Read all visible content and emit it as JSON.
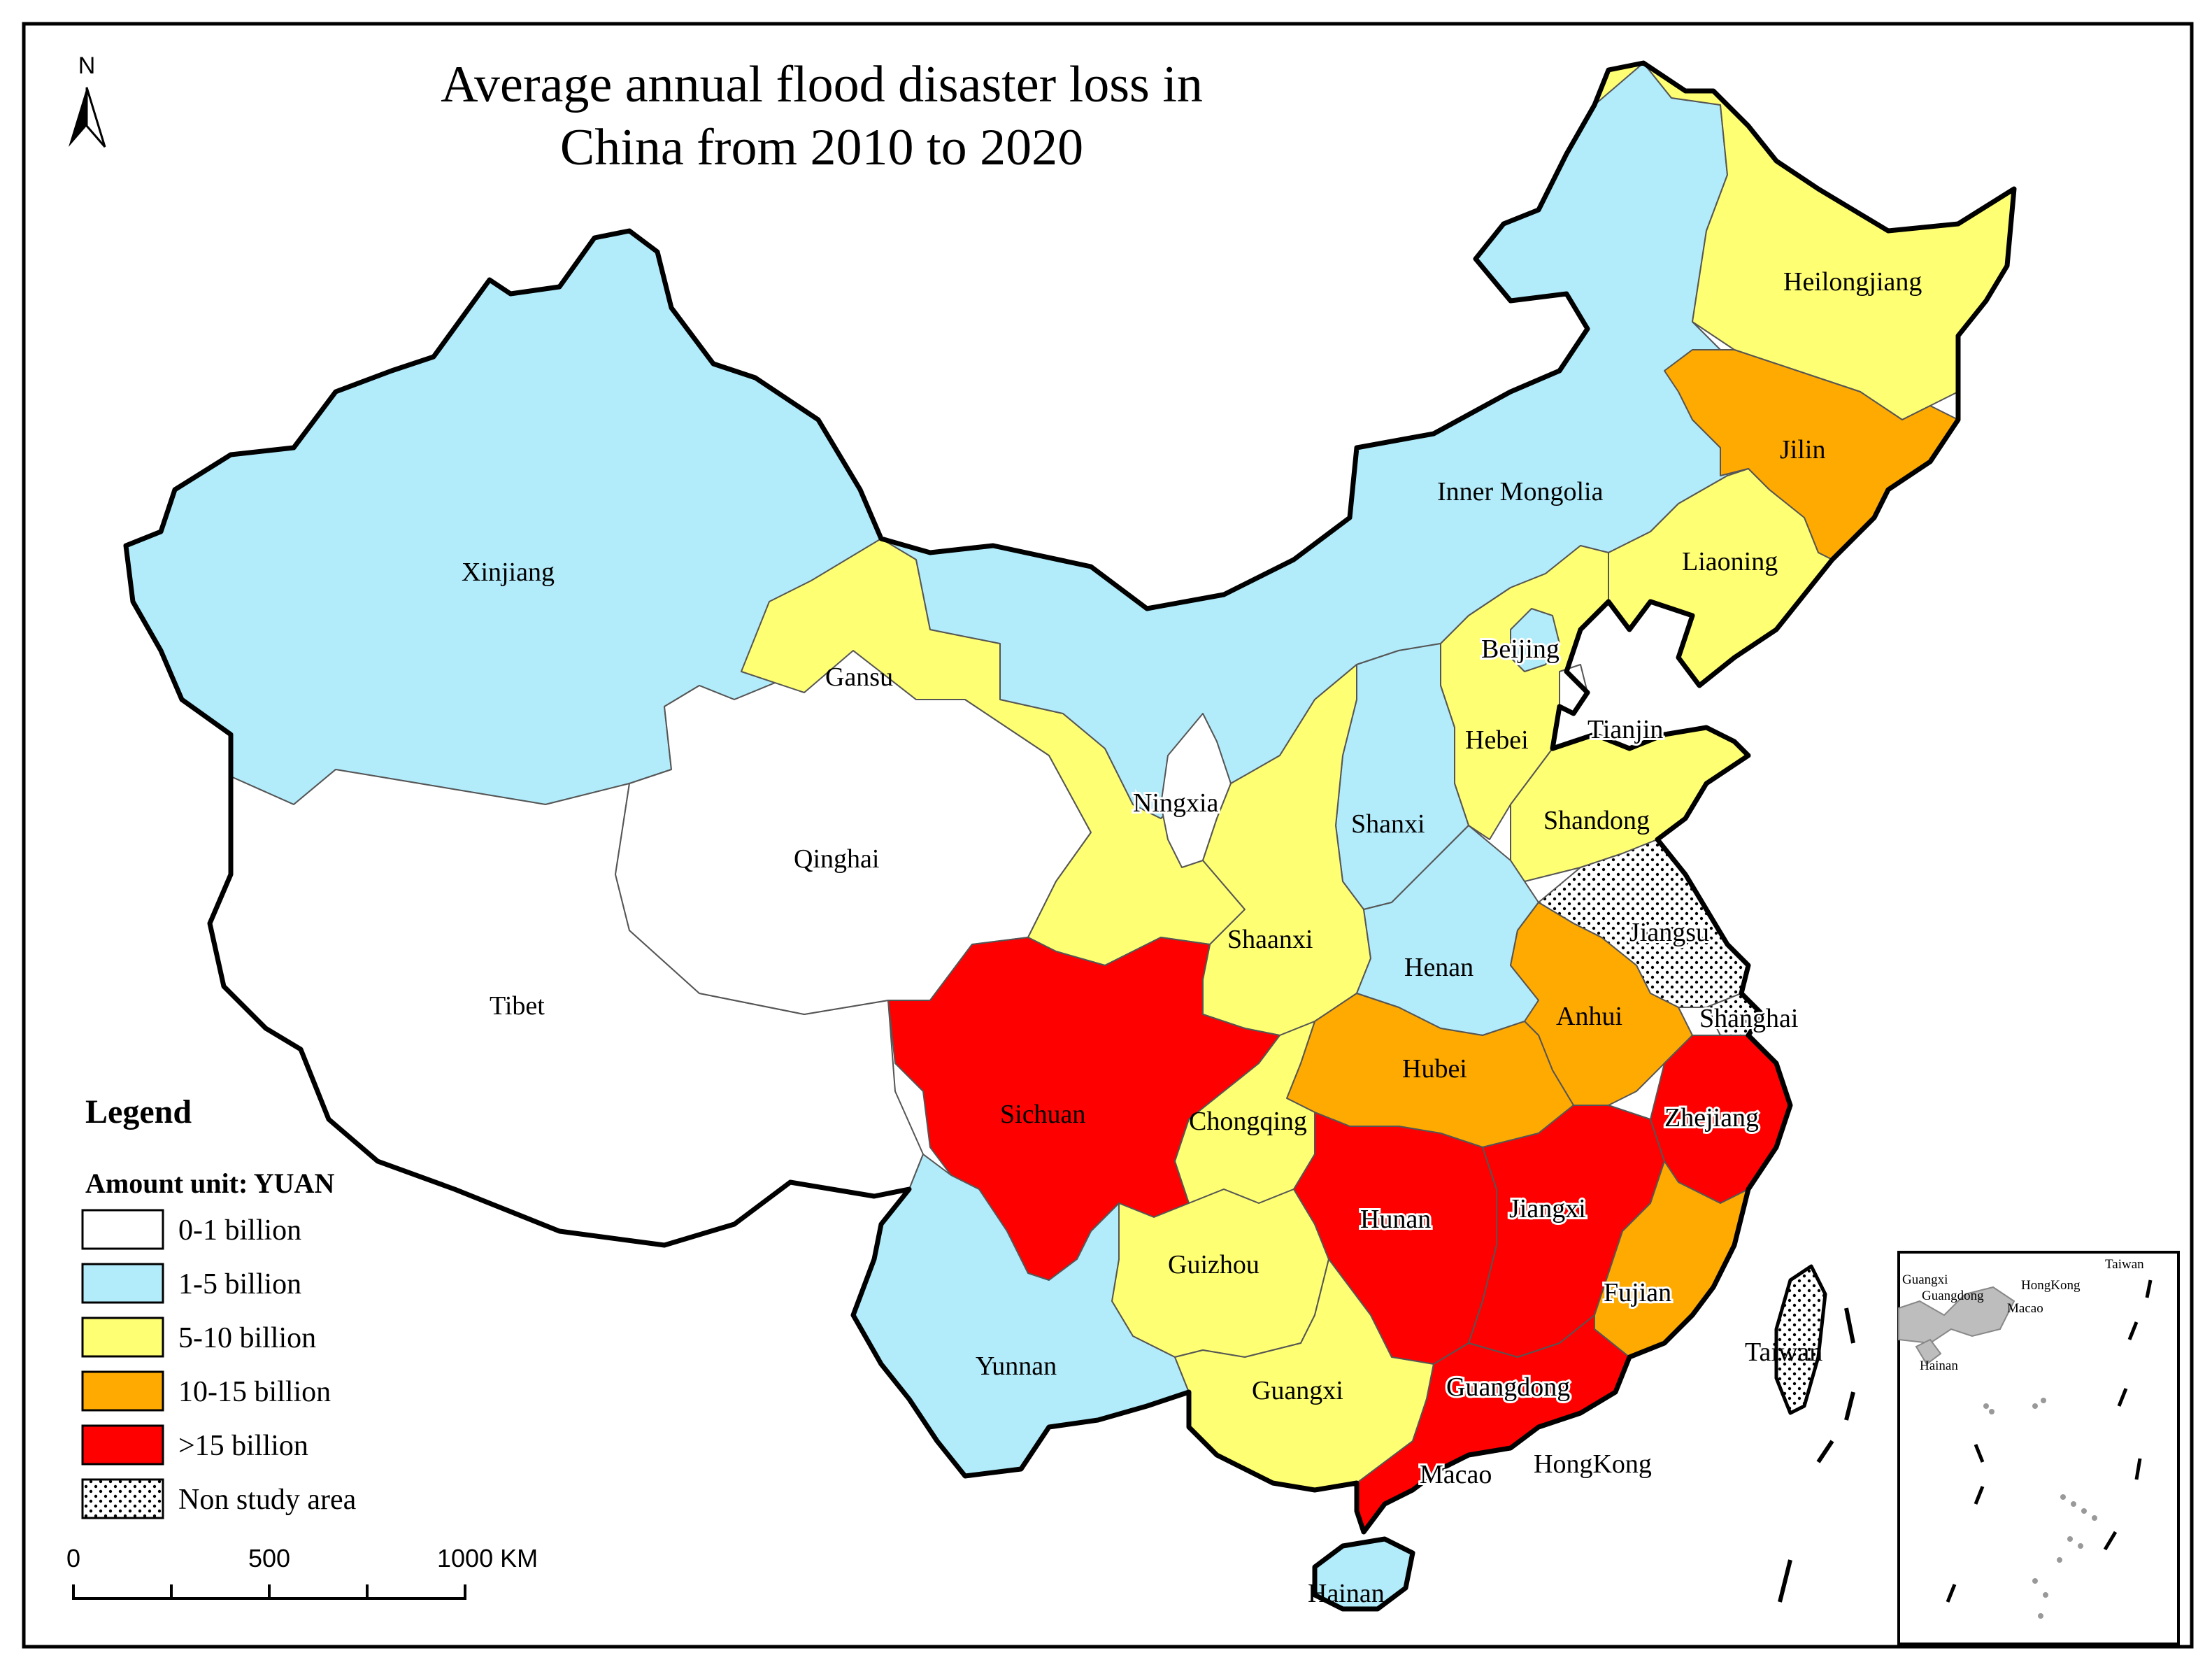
{
  "title_lines": [
    "Average annual flood disaster loss in",
    "China from 2010 to 2020"
  ],
  "north_arrow": {
    "label": "N",
    "icon": "north-arrow-icon"
  },
  "legend": {
    "heading": "Legend",
    "unit": "Amount unit: YUAN",
    "classes": [
      {
        "label": "0-1 billion",
        "color": "#ffffff",
        "pattern": false
      },
      {
        "label": "1-5 billion",
        "color": "#b2ebfa",
        "pattern": false
      },
      {
        "label": "5-10 billion",
        "color": "#ffff73",
        "pattern": false
      },
      {
        "label": "10-15 billion",
        "color": "#ffaa00",
        "pattern": false
      },
      {
        "label": ">15 billion",
        "color": "#ff0000",
        "pattern": false
      },
      {
        "label": "Non study area",
        "color": "#ffffff",
        "pattern": true
      }
    ]
  },
  "scale_bar": {
    "ticks": [
      "0",
      "500",
      "1000 KM"
    ]
  },
  "provinces": [
    {
      "name": "Xinjiang",
      "class": "1-5 billion"
    },
    {
      "name": "Tibet",
      "class": "0-1 billion"
    },
    {
      "name": "Qinghai",
      "class": "0-1 billion"
    },
    {
      "name": "Gansu",
      "class": "5-10 billion"
    },
    {
      "name": "Inner Mongolia",
      "class": "1-5 billion"
    },
    {
      "name": "Heilongjiang",
      "class": "5-10 billion"
    },
    {
      "name": "Jilin",
      "class": "10-15 billion"
    },
    {
      "name": "Liaoning",
      "class": "5-10 billion"
    },
    {
      "name": "Beijing",
      "class": "1-5 billion"
    },
    {
      "name": "Tianjin",
      "class": "0-1 billion"
    },
    {
      "name": "Hebei",
      "class": "5-10 billion"
    },
    {
      "name": "Shandong",
      "class": "5-10 billion"
    },
    {
      "name": "Shanxi",
      "class": "1-5 billion"
    },
    {
      "name": "Ningxia",
      "class": "0-1 billion"
    },
    {
      "name": "Shaanxi",
      "class": "5-10 billion"
    },
    {
      "name": "Henan",
      "class": "1-5 billion"
    },
    {
      "name": "Jiangsu",
      "class": "Non study area"
    },
    {
      "name": "Shanghai",
      "class": "Non study area"
    },
    {
      "name": "Anhui",
      "class": "10-15 billion"
    },
    {
      "name": "Hubei",
      "class": "10-15 billion"
    },
    {
      "name": "Sichuan",
      "class": ">15 billion"
    },
    {
      "name": "Chongqing",
      "class": "5-10 billion"
    },
    {
      "name": "Zhejiang",
      "class": ">15 billion"
    },
    {
      "name": "Hunan",
      "class": ">15 billion"
    },
    {
      "name": "Jiangxi",
      "class": ">15 billion"
    },
    {
      "name": "Fujian",
      "class": "10-15 billion"
    },
    {
      "name": "Guizhou",
      "class": "5-10 billion"
    },
    {
      "name": "Yunnan",
      "class": "1-5 billion"
    },
    {
      "name": "Guangxi",
      "class": "5-10 billion"
    },
    {
      "name": "Guangdong",
      "class": ">15 billion"
    },
    {
      "name": "Taiwan",
      "class": "Non study area"
    },
    {
      "name": "Macao",
      "class": "0-1 billion"
    },
    {
      "name": "HongKong",
      "class": "0-1 billion"
    },
    {
      "name": "Hainan",
      "class": "1-5 billion"
    }
  ],
  "inset": {
    "labels": [
      "Guangxi",
      "Guangdong",
      "HongKong",
      "Taiwan",
      "Macao",
      "Hainan"
    ]
  }
}
